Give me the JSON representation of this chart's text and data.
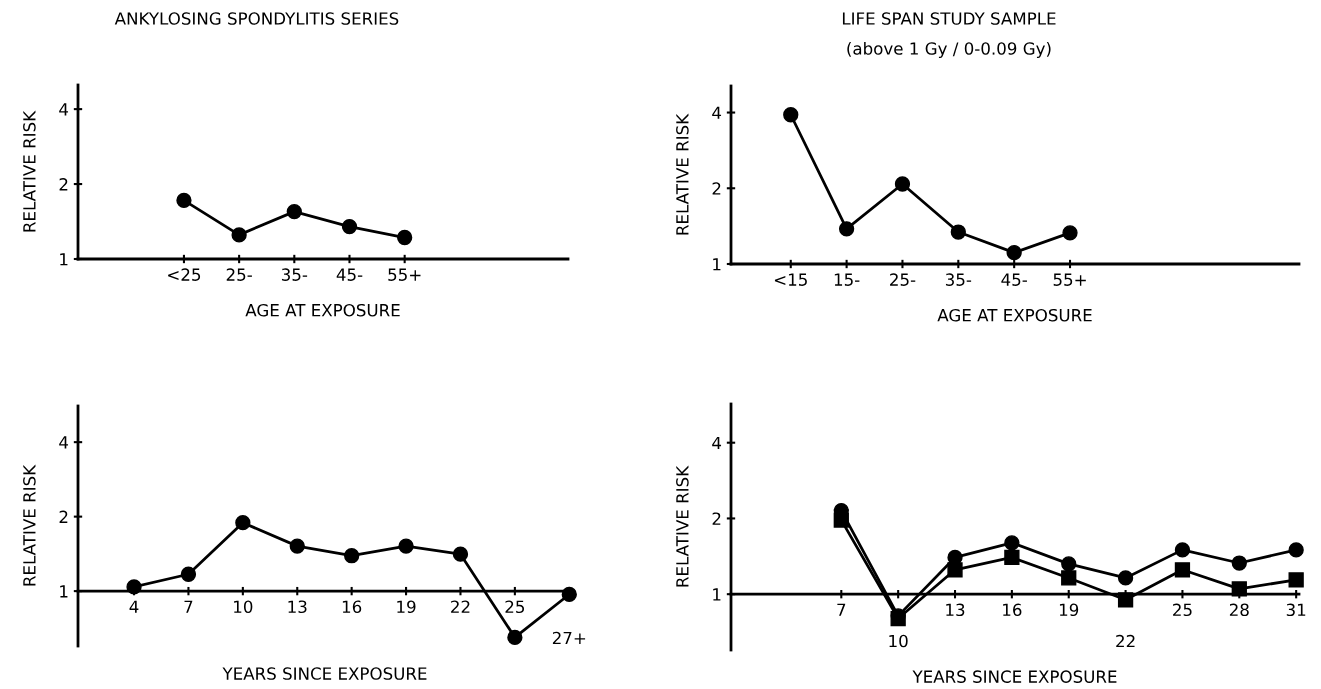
{
  "chart_data": [
    {
      "type": "line",
      "title": "ANKYLOSING SPONDYLITIS SERIES",
      "xlabel": "AGE AT EXPOSURE",
      "ylabel": "RELATIVE RISK",
      "categories": [
        "<25",
        "25-",
        "35-",
        "45-",
        "55+"
      ],
      "log": "y",
      "ylim": [
        1,
        5
      ],
      "yticks": [
        1,
        2,
        4
      ],
      "marker": "circle",
      "line_style": "solid",
      "grid": false,
      "series": [
        {
          "color": "#000000",
          "values": [
            1.72,
            1.25,
            1.55,
            1.35,
            1.22
          ]
        }
      ]
    },
    {
      "type": "line",
      "title": "LIFE SPAN STUDY SAMPLE",
      "subtitle": "(above 1 Gy / 0-0.09 Gy)",
      "xlabel": "AGE AT EXPOSURE",
      "ylabel": "RELATIVE RISK",
      "categories": [
        "<15",
        "15-",
        "25-",
        "35-",
        "45-",
        "55+"
      ],
      "log": "y",
      "ylim": [
        1,
        5.1
      ],
      "yticks": [
        1,
        2,
        4
      ],
      "marker": "circle",
      "line_style": "solid",
      "grid": false,
      "series": [
        {
          "color": "#000000",
          "values": [
            3.92,
            1.38,
            2.08,
            1.34,
            1.11,
            1.33
          ]
        }
      ]
    },
    {
      "type": "line",
      "xlabel": "YEARS SINCE EXPOSURE",
      "ylabel": "RELATIVE RISK",
      "categories": [
        "4",
        "7",
        "10",
        "13",
        "16",
        "19",
        "22",
        "25",
        "27+"
      ],
      "log": "y",
      "ylim": [
        0.6,
        5.6
      ],
      "yticks": [
        1,
        2,
        4
      ],
      "marker": "circle",
      "line_style": "solid",
      "grid": false,
      "series": [
        {
          "color": "#000000",
          "values": [
            1.04,
            1.17,
            1.89,
            1.52,
            1.39,
            1.52,
            1.41,
            0.65,
            0.97
          ]
        }
      ]
    },
    {
      "type": "line",
      "xlabel": "YEARS SINCE EXPOSURE",
      "ylabel": "RELATIVE RISK",
      "categories": [
        "7",
        "10",
        "13",
        "16",
        "19",
        "22",
        "25",
        "28",
        "31"
      ],
      "log": "y",
      "ylim": [
        0.6,
        5.7
      ],
      "yticks": [
        1,
        2,
        4
      ],
      "line_style": "solid",
      "grid": false,
      "series": [
        {
          "color": "#000000",
          "marker": "circle",
          "values": [
            2.15,
            0.82,
            1.4,
            1.6,
            1.32,
            1.16,
            1.5,
            1.33,
            1.5
          ]
        },
        {
          "color": "#000000",
          "marker": "square",
          "values": [
            1.97,
            0.8,
            1.25,
            1.4,
            1.16,
            0.95,
            1.25,
            1.05,
            1.14
          ]
        }
      ]
    }
  ]
}
